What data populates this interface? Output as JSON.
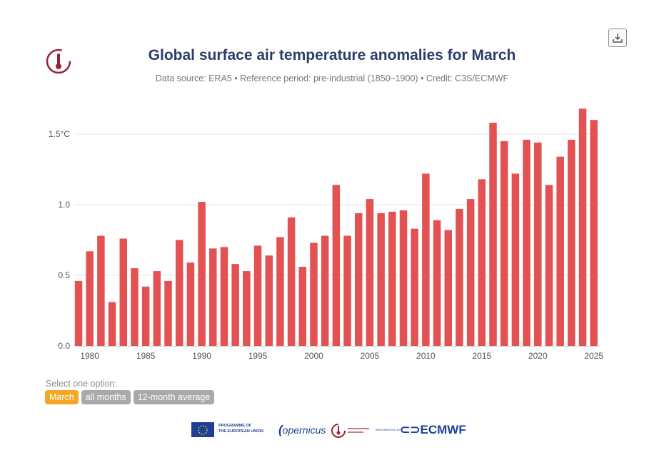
{
  "title": "Global surface air temperature anomalies for March",
  "subtitle": "Data source: ERA5 • Reference period: pre-industrial (1850–1900) • Credit: C3S/ECMWF",
  "options": {
    "label": "Select one option:",
    "items": [
      "March",
      "all months",
      "12-month average"
    ],
    "selected": "March"
  },
  "footer": {
    "eu_line1": "PROGRAMME OF",
    "eu_line2": "THE EUROPEAN UNION",
    "copernicus": "opernicus",
    "implemented": "IMPLEMENTED BY",
    "ecmwf": "ECMWF"
  },
  "colors": {
    "bar": "#e35252",
    "active_option": "#f5a623",
    "inactive_option": "#a9a9a9",
    "title": "#2c3e66",
    "brand_blue": "#1d3f95",
    "logo_red": "#9b2335"
  },
  "icons": [
    "download-icon",
    "climate-thermometer-logo",
    "eu-flag-icon",
    "ecmwf-logo-icon"
  ],
  "chart_data": {
    "type": "bar",
    "title": "Global surface air temperature anomalies for March",
    "x": [
      1979,
      1980,
      1981,
      1982,
      1983,
      1984,
      1985,
      1986,
      1987,
      1988,
      1989,
      1990,
      1991,
      1992,
      1993,
      1994,
      1995,
      1996,
      1997,
      1998,
      1999,
      2000,
      2001,
      2002,
      2003,
      2004,
      2005,
      2006,
      2007,
      2008,
      2009,
      2010,
      2011,
      2012,
      2013,
      2014,
      2015,
      2016,
      2017,
      2018,
      2019,
      2020,
      2021,
      2022,
      2023,
      2024,
      2025
    ],
    "values": [
      0.46,
      0.67,
      0.78,
      0.31,
      0.76,
      0.55,
      0.42,
      0.53,
      0.46,
      0.75,
      0.59,
      1.02,
      0.69,
      0.7,
      0.58,
      0.53,
      0.71,
      0.64,
      0.77,
      0.91,
      0.56,
      0.73,
      0.78,
      1.14,
      0.78,
      0.94,
      1.04,
      0.94,
      0.95,
      0.96,
      0.83,
      1.22,
      0.89,
      0.82,
      0.97,
      1.04,
      1.18,
      1.58,
      1.45,
      1.22,
      1.46,
      1.44,
      1.14,
      1.34,
      1.46,
      1.68,
      1.6
    ],
    "x_tick_labels": [
      "1980",
      "1985",
      "1990",
      "1995",
      "2000",
      "2005",
      "2010",
      "2015",
      "2020",
      "2025"
    ],
    "x_tick_years": [
      1980,
      1985,
      1990,
      1995,
      2000,
      2005,
      2010,
      2015,
      2020,
      2025
    ],
    "y_tick_labels": [
      "0.0",
      "0.5",
      "1.0",
      "1.5°C"
    ],
    "y_tick_values": [
      0,
      0.5,
      1.0,
      1.5
    ],
    "xlabel": "",
    "ylabel": "",
    "ylim": [
      0,
      1.75
    ],
    "grid": true,
    "legend": "none"
  }
}
